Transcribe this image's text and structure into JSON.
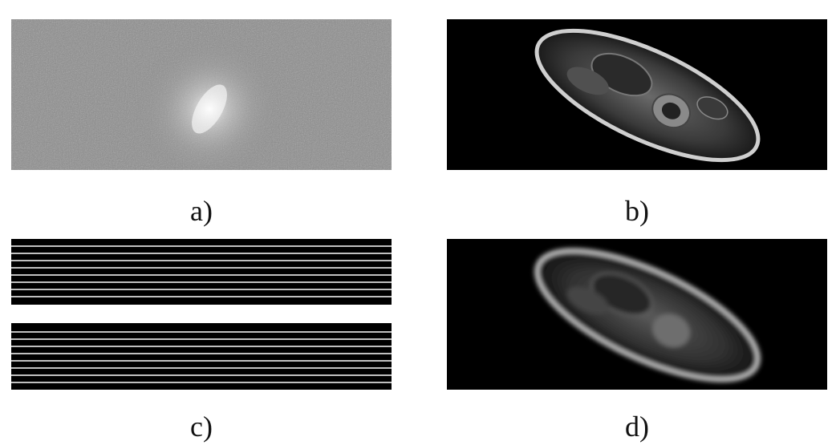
{
  "figure": {
    "panels": [
      {
        "id": "a",
        "caption": "a)",
        "content": "k-space-magnitude"
      },
      {
        "id": "b",
        "caption": "b)",
        "content": "fully-sampled-mri"
      },
      {
        "id": "c",
        "caption": "c)",
        "content": "undersampling-masks"
      },
      {
        "id": "d",
        "caption": "d)",
        "content": "undersampled-reconstruction"
      }
    ],
    "colors": {
      "background": "#ffffff",
      "image_background": "#000000",
      "kspace_gray": "#8a8a8a",
      "mask_line": "#ffffff"
    }
  }
}
